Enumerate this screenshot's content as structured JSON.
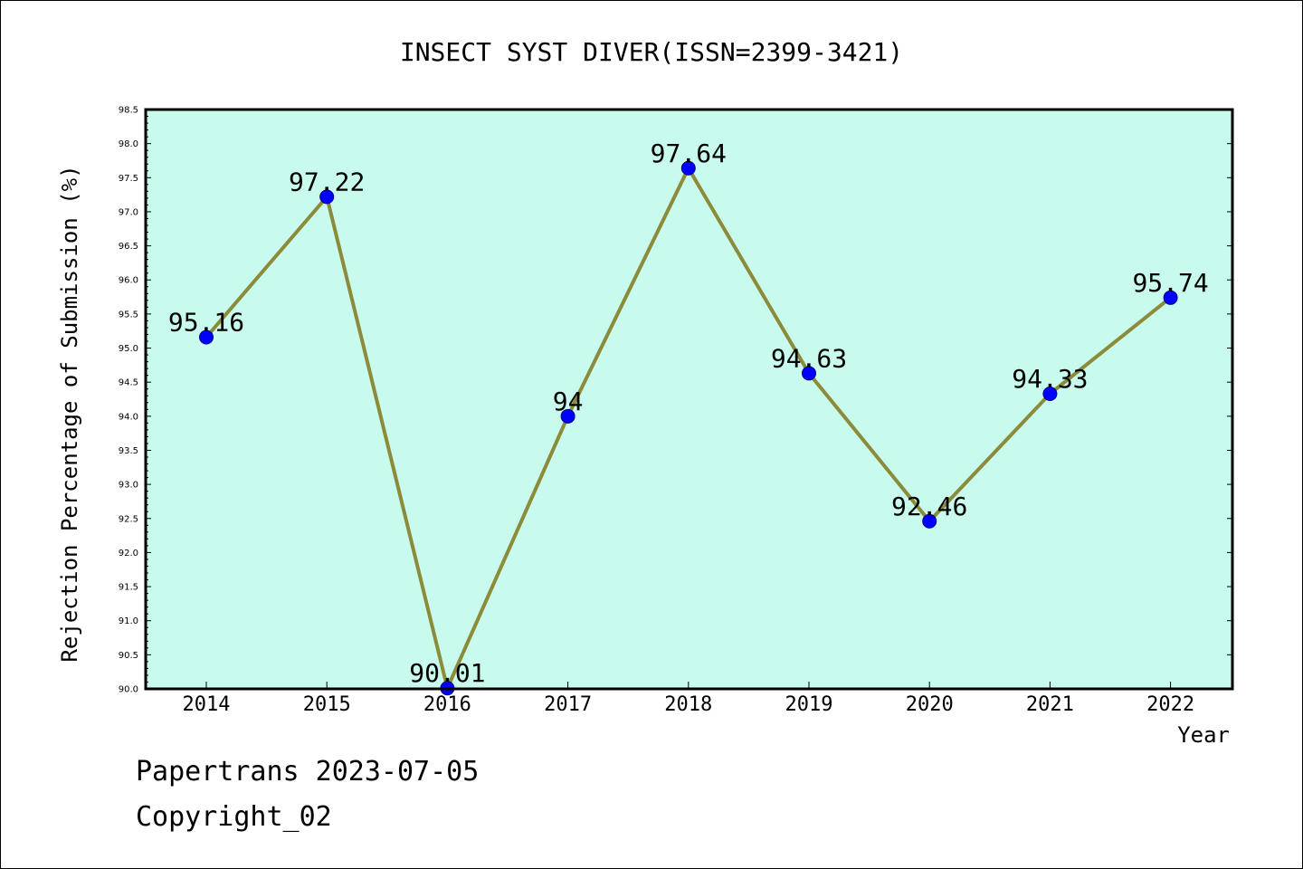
{
  "chart_data": {
    "type": "line",
    "title": "INSECT SYST DIVER(ISSN=2399-3421)",
    "xlabel": "Year",
    "ylabel": "Rejection Percentage of Submission (%)",
    "categories": [
      "2014",
      "2015",
      "2016",
      "2017",
      "2018",
      "2019",
      "2020",
      "2021",
      "2022"
    ],
    "series": [
      {
        "values": [
          95.16,
          97.22,
          90.01,
          94,
          97.64,
          94.63,
          92.46,
          94.33,
          95.74
        ],
        "data_labels": [
          "95.16",
          "97.22",
          "90.01",
          "94",
          "97.64",
          "94.63",
          "92.46",
          "94.33",
          "95.74"
        ],
        "line_color": "#8b8b3a",
        "marker_color": "#0000ff"
      }
    ],
    "ylim": [
      90.0,
      98.5
    ],
    "yticks": [
      "90.0",
      "90.5",
      "91.0",
      "91.5",
      "92.0",
      "92.5",
      "93.0",
      "93.5",
      "94.0",
      "94.5",
      "95.0",
      "95.5",
      "96.0",
      "96.5",
      "97.0",
      "97.5",
      "98.0",
      "98.5"
    ],
    "plot_background": "#c8fbee",
    "grid": false,
    "legend": "none"
  },
  "footer": {
    "date_line": "Papertrans 2023-07-05",
    "copyright_line": "Copyright_02"
  }
}
